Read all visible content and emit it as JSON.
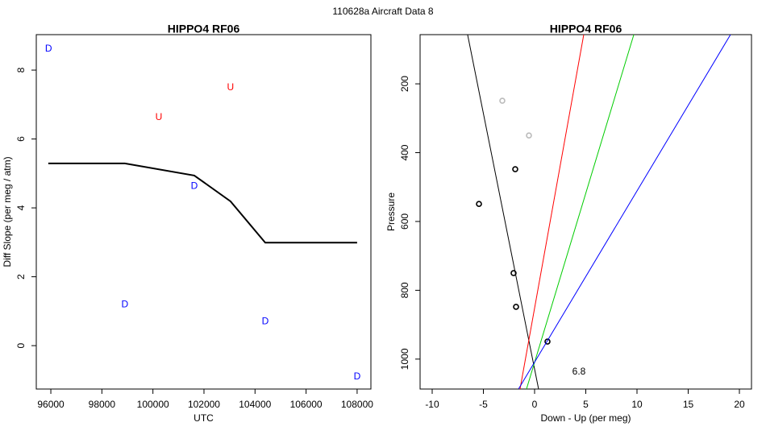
{
  "title": "110628a   Aircraft Data 8",
  "chart_data": [
    {
      "type": "scatter",
      "title": "HIPPO4 RF06",
      "x_label": "UTC",
      "y_label": "Diff Slope (per meg / atm)",
      "xlim": [
        95430,
        108540
      ],
      "ylim": [
        -1.26,
        9.03
      ],
      "xticks": [
        96000,
        98000,
        100000,
        102000,
        104000,
        106000,
        108000
      ],
      "yticks": [
        0,
        2,
        4,
        6,
        8
      ],
      "series": [
        {
          "name": "D",
          "color": "#0000ff",
          "mode": "text",
          "x": [
            95910,
            98900,
            101620,
            104400,
            108000
          ],
          "y": [
            8.61,
            1.19,
            4.63,
            0.7,
            -0.91
          ]
        },
        {
          "name": "U",
          "color": "#ff0000",
          "mode": "text",
          "x": [
            100230,
            103040
          ],
          "y": [
            6.62,
            7.49
          ]
        },
        {
          "color": "#000000",
          "mode": "line",
          "x": [
            95900,
            98900,
            101620,
            103040,
            104400,
            108000
          ],
          "y": [
            5.29,
            5.29,
            4.94,
            4.19,
            2.99,
            2.99
          ]
        }
      ]
    },
    {
      "type": "scatter",
      "title": "HIPPO4 RF06",
      "x_label": "Down - Up (per meg)",
      "y_label": "Pressure",
      "xlim": [
        -11.18,
        21.18
      ],
      "ylim": [
        1087,
        57
      ],
      "xticks": [
        -10,
        -5,
        0,
        5,
        10,
        15,
        20
      ],
      "yticks": [
        200,
        400,
        600,
        800,
        1000
      ],
      "series": [
        {
          "color": "#000000",
          "mode": "points",
          "x": [
            -1.89,
            -5.43,
            -2.05,
            -1.81,
            1.26
          ],
          "y": [
            448,
            549,
            750,
            848,
            949
          ]
        },
        {
          "color": "#bbbbbb",
          "mode": "points",
          "x": [
            -3.15,
            -0.55
          ],
          "y": [
            249,
            350
          ]
        },
        {
          "color": "#000000",
          "mode": "line",
          "x": [
            -6.54,
            0.39
          ],
          "y": [
            57,
            1087
          ]
        },
        {
          "color": "#ff0000",
          "mode": "line",
          "x": [
            4.8,
            -1.42
          ],
          "y": [
            57,
            1087
          ]
        },
        {
          "color": "#00cc00",
          "mode": "line",
          "x": [
            9.69,
            -0.79
          ],
          "y": [
            57,
            1087
          ]
        },
        {
          "color": "#0000ff",
          "mode": "line",
          "x": [
            19.13,
            -1.57
          ],
          "y": [
            57,
            1087
          ]
        }
      ],
      "annotations": [
        {
          "text": "6.8",
          "x": 4.33,
          "y": 1037
        }
      ]
    }
  ]
}
